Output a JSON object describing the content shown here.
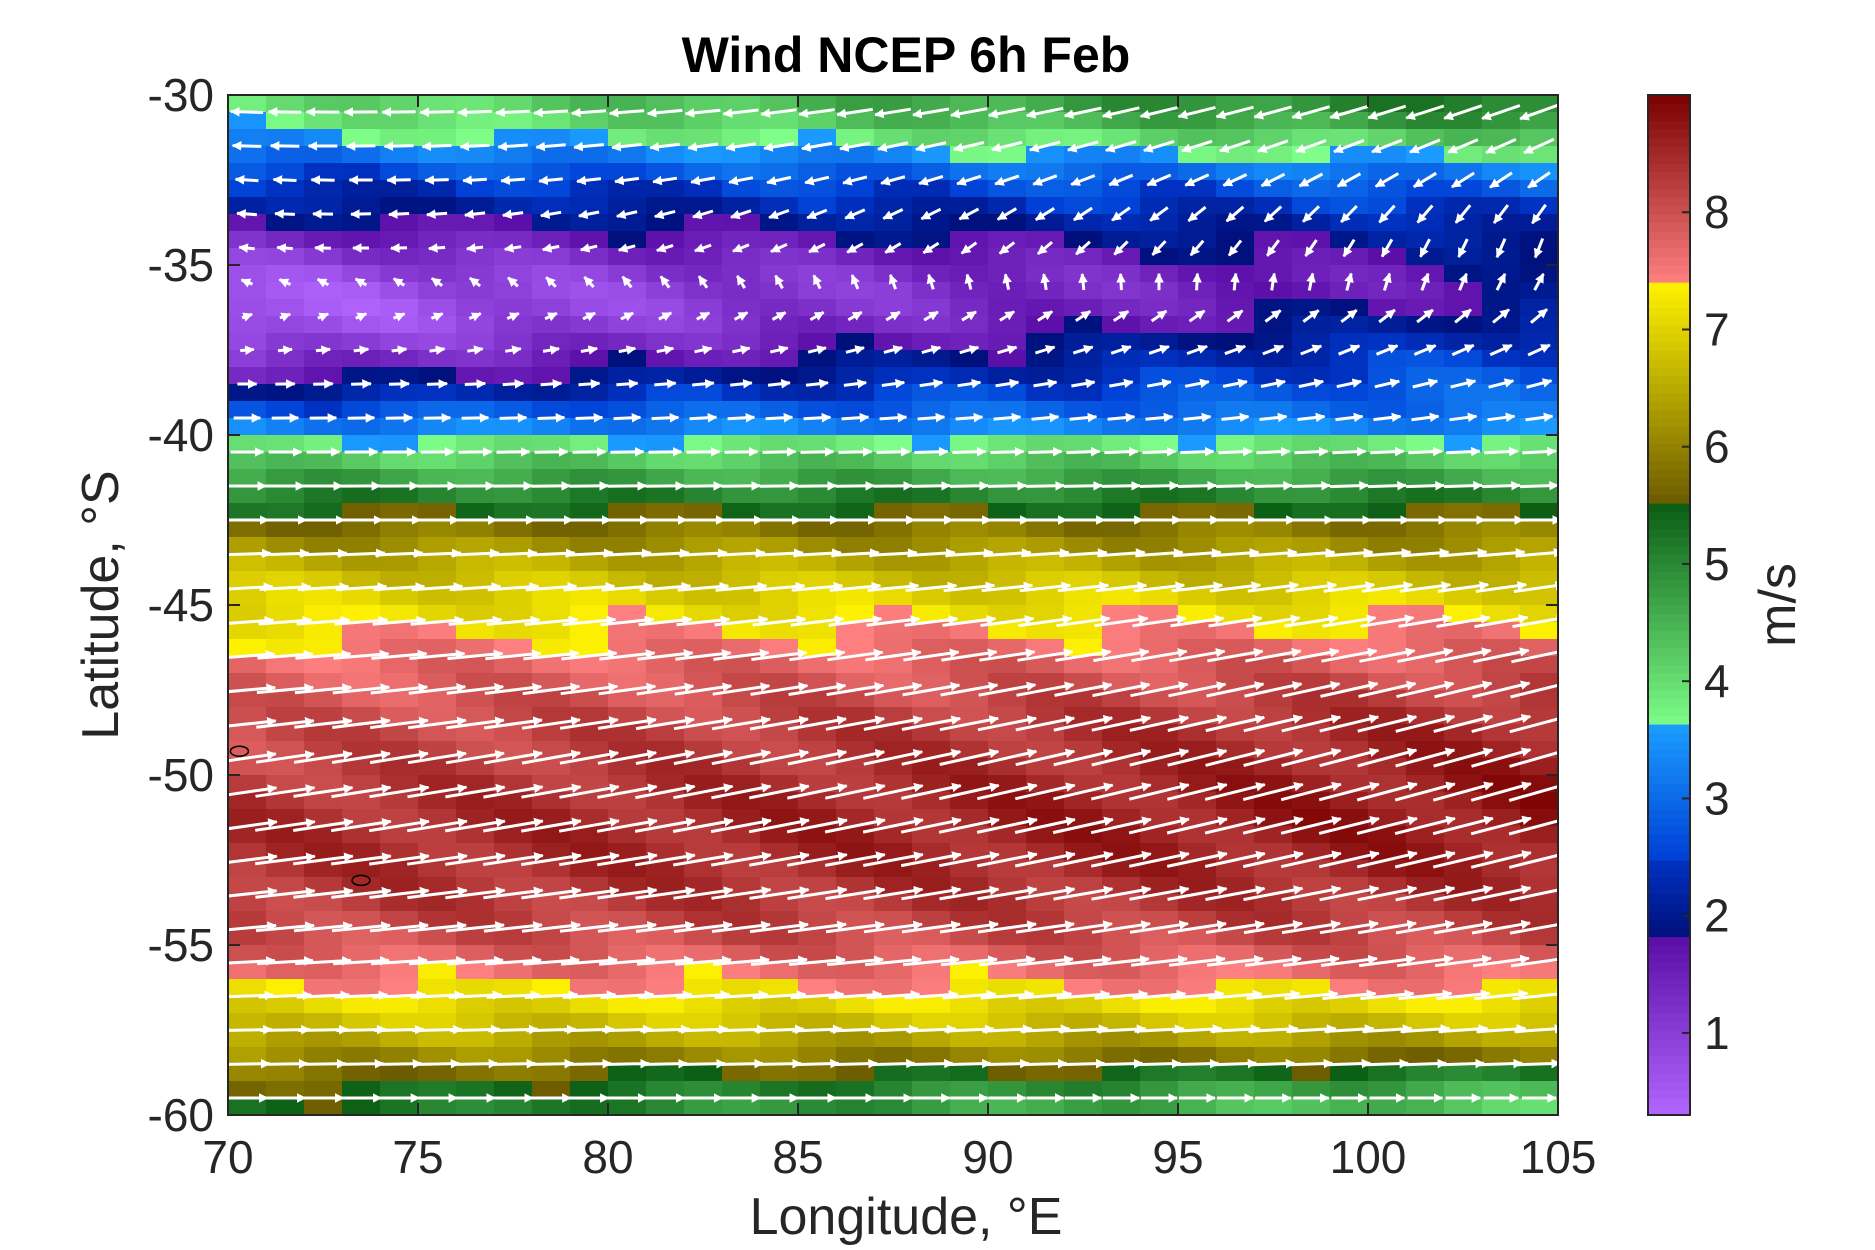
{
  "chart_data": {
    "type": "heatmap",
    "title": "Wind NCEP 6h Feb",
    "xlabel": "Longitude, °E",
    "ylabel": "Latitude, °S",
    "colorbar_label": "m/s",
    "xlim": [
      70,
      105
    ],
    "ylim": [
      -60,
      -30
    ],
    "x_ticks": [
      70,
      75,
      80,
      85,
      90,
      95,
      100,
      105
    ],
    "y_ticks": [
      -30,
      -35,
      -40,
      -45,
      -50,
      -55,
      -60
    ],
    "x_tick_labels": [
      "70",
      "75",
      "80",
      "85",
      "90",
      "95",
      "100",
      "105"
    ],
    "y_tick_labels": [
      "-30",
      "-35",
      "-40",
      "-45",
      "-50",
      "-55",
      "-60"
    ],
    "color_range": [
      0.3,
      9.0
    ],
    "colorbar_ticks": [
      1,
      2,
      3,
      4,
      5,
      6,
      7,
      8
    ],
    "colorbar_tick_labels": [
      "1",
      "2",
      "3",
      "4",
      "5",
      "6",
      "7",
      "8"
    ],
    "grid": false,
    "colorbar_placement": "right",
    "colormap_segments": [
      {
        "from": 0.3,
        "to": 1.8,
        "start_color": "#b266ff",
        "end_color": "#5b0fa8"
      },
      {
        "from": 1.8,
        "to": 2.5,
        "start_color": "#000f7a",
        "end_color": "#0033c4"
      },
      {
        "from": 2.5,
        "to": 3.6,
        "start_color": "#0040d6",
        "end_color": "#1a9bff"
      },
      {
        "from": 3.6,
        "to": 5.5,
        "start_color": "#7fff8a",
        "end_color": "#0b5e14"
      },
      {
        "from": 5.5,
        "to": 7.4,
        "start_color": "#6b5a00",
        "end_color": "#fff200"
      },
      {
        "from": 7.4,
        "to": 9.0,
        "start_color": "#ff8080",
        "end_color": "#7a0000"
      }
    ],
    "speed_profile": {
      "latitudes": [
        -30.5,
        -31.5,
        -32.5,
        -33.5,
        -34.5,
        -35.5,
        -36.5,
        -37.5,
        -38.5,
        -39.5,
        -40.5,
        -41.5,
        -42.5,
        -43.5,
        -44.5,
        -45.5,
        -46.5,
        -47.5,
        -48.5,
        -49.5,
        -50.5,
        -51.5,
        -52.5,
        -53.5,
        -54.5,
        -55.5,
        -56.5,
        -57.5,
        -58.5,
        -59.5
      ],
      "speed_west": [
        3.9,
        3.3,
        2.4,
        1.9,
        1.2,
        0.6,
        0.4,
        0.9,
        1.8,
        3.0,
        4.0,
        4.9,
        5.6,
        6.4,
        6.9,
        7.2,
        7.6,
        7.8,
        8.0,
        8.1,
        8.3,
        8.4,
        8.4,
        8.3,
        8.1,
        7.7,
        7.2,
        6.7,
        6.0,
        5.4
      ],
      "speed_east": [
        5.2,
        4.0,
        3.0,
        2.4,
        2.0,
        1.7,
        2.1,
        2.6,
        2.9,
        3.1,
        4.1,
        4.8,
        5.8,
        6.3,
        6.9,
        7.4,
        7.8,
        8.2,
        8.5,
        8.6,
        8.7,
        8.7,
        8.6,
        8.4,
        8.2,
        7.8,
        7.3,
        6.6,
        5.5,
        4.2
      ]
    },
    "wind_direction_profile": {
      "latitudes": [
        -30.5,
        -31.5,
        -32.5,
        -33.5,
        -34.5,
        -35.5,
        -36.5,
        -37.5,
        -38.5,
        -39.5,
        -40.5,
        -41.5,
        -42.5,
        -43.5,
        -44.5,
        -45.5,
        -46.5,
        -47.5,
        -48.5,
        -49.5,
        -50.5,
        -51.5,
        -52.5,
        -53.5,
        -54.5,
        -55.5,
        -56.5,
        -57.5,
        -58.5,
        -59.5
      ],
      "direction_deg_west": [
        178,
        178,
        176,
        175,
        172,
        160,
        20,
        5,
        0,
        0,
        0,
        0,
        0,
        2,
        3,
        4,
        4,
        5,
        6,
        8,
        8,
        8,
        7,
        6,
        5,
        3,
        2,
        1,
        1,
        0
      ],
      "direction_deg_east": [
        200,
        205,
        215,
        235,
        250,
        60,
        40,
        25,
        15,
        8,
        3,
        2,
        0,
        5,
        8,
        10,
        12,
        14,
        15,
        16,
        16,
        15,
        14,
        12,
        10,
        8,
        6,
        4,
        2,
        0
      ]
    },
    "arrow_color": "#ffffff",
    "island_outlines": [
      {
        "lon": 70.3,
        "lat": -49.3
      },
      {
        "lon": 73.5,
        "lat": -53.1
      }
    ]
  }
}
